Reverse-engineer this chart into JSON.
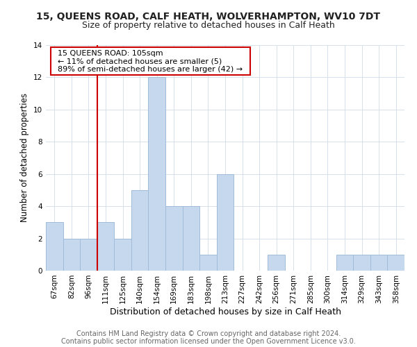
{
  "title": "15, QUEENS ROAD, CALF HEATH, WOLVERHAMPTON, WV10 7DT",
  "subtitle": "Size of property relative to detached houses in Calf Heath",
  "xlabel": "Distribution of detached houses by size in Calf Heath",
  "ylabel": "Number of detached properties",
  "bin_labels": [
    "67sqm",
    "82sqm",
    "96sqm",
    "111sqm",
    "125sqm",
    "140sqm",
    "154sqm",
    "169sqm",
    "183sqm",
    "198sqm",
    "213sqm",
    "227sqm",
    "242sqm",
    "256sqm",
    "271sqm",
    "285sqm",
    "300sqm",
    "314sqm",
    "329sqm",
    "343sqm",
    "358sqm"
  ],
  "bar_heights": [
    3,
    2,
    2,
    3,
    2,
    5,
    12,
    4,
    4,
    1,
    6,
    0,
    0,
    1,
    0,
    0,
    0,
    1,
    1,
    1,
    1
  ],
  "bar_color": "#c5d8ed",
  "bar_edge_color": "#a0bcd8",
  "reference_line_color": "#cc0000",
  "annotation_title": "15 QUEENS ROAD: 105sqm",
  "annotation_line1": "← 11% of detached houses are smaller (5)",
  "annotation_line2": "89% of semi-detached houses are larger (42) →",
  "annotation_box_color": "#ffffff",
  "annotation_box_edge": "#cc0000",
  "ylim": [
    0,
    14
  ],
  "yticks": [
    0,
    2,
    4,
    6,
    8,
    10,
    12,
    14
  ],
  "footer1": "Contains HM Land Registry data © Crown copyright and database right 2024.",
  "footer2": "Contains public sector information licensed under the Open Government Licence v3.0.",
  "title_fontsize": 10,
  "subtitle_fontsize": 9,
  "xlabel_fontsize": 9,
  "ylabel_fontsize": 8.5,
  "footer_fontsize": 7,
  "tick_fontsize": 7.5,
  "annotation_fontsize": 8
}
